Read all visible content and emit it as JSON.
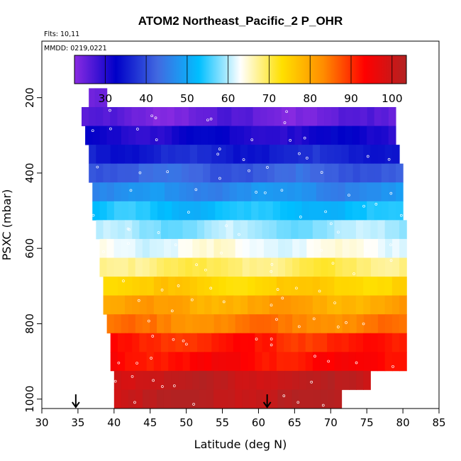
{
  "chart_data": {
    "type": "heatmap",
    "title": "ATOM2 Northeast_Pacific_2 P_OHR",
    "notes": [
      "Flts: 10,11",
      "MMDD: 0219,0221"
    ],
    "xlabel": "Latitude (deg N)",
    "ylabel": "PSXC (mbar)",
    "xlim": [
      30,
      85
    ],
    "ylim": [
      1025,
      50
    ],
    "xticks": [
      30,
      35,
      40,
      45,
      50,
      55,
      60,
      65,
      70,
      75,
      80,
      85
    ],
    "yticks": [
      200,
      400,
      600,
      800,
      1000
    ],
    "colorbar": {
      "range": [
        22.5,
        103.5
      ],
      "ticks": [
        30,
        40,
        50,
        60,
        70,
        80,
        90,
        100
      ],
      "colors": [
        "#8a2be2",
        "#0000c8",
        "#4169e1",
        "#00bfff",
        "#ffffff",
        "#ffe000",
        "#ff8c00",
        "#ff0000",
        "#b22222"
      ]
    },
    "levels": [
      {
        "p": 200,
        "lat_min": 36.5,
        "lat_max": 39,
        "value": 24
      },
      {
        "p": 250,
        "lat_min": 35.5,
        "lat_max": 79,
        "value": 25
      },
      {
        "p": 300,
        "lat_min": 36,
        "lat_max": 79,
        "value": 31
      },
      {
        "p": 350,
        "lat_min": 36.5,
        "lat_max": 79.5,
        "value": 36
      },
      {
        "p": 400,
        "lat_min": 36.5,
        "lat_max": 80,
        "value": 42
      },
      {
        "p": 450,
        "lat_min": 37,
        "lat_max": 80,
        "value": 47
      },
      {
        "p": 500,
        "lat_min": 37,
        "lat_max": 80,
        "value": 53
      },
      {
        "p": 550,
        "lat_min": 37.5,
        "lat_max": 80.5,
        "value": 59
      },
      {
        "p": 600,
        "lat_min": 38,
        "lat_max": 80.5,
        "value": 63
      },
      {
        "p": 650,
        "lat_min": 38,
        "lat_max": 80.5,
        "value": 69
      },
      {
        "p": 700,
        "lat_min": 38.5,
        "lat_max": 80.5,
        "value": 75
      },
      {
        "p": 750,
        "lat_min": 38.5,
        "lat_max": 80.5,
        "value": 80
      },
      {
        "p": 800,
        "lat_min": 39,
        "lat_max": 80.5,
        "value": 84
      },
      {
        "p": 850,
        "lat_min": 39.5,
        "lat_max": 80.5,
        "value": 91
      },
      {
        "p": 900,
        "lat_min": 39.5,
        "lat_max": 80.5,
        "value": 93
      },
      {
        "p": 950,
        "lat_min": 40,
        "lat_max": 75.5,
        "value": 101
      },
      {
        "p": 1000,
        "lat_min": 40,
        "lat_max": 71.5,
        "value": 102
      }
    ],
    "arrows": [
      34.7,
      61.2
    ]
  }
}
